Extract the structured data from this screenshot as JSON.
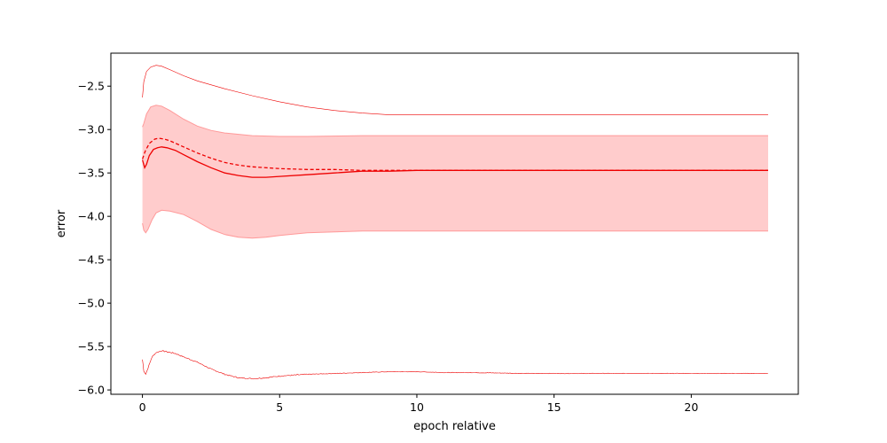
{
  "chart_data": {
    "type": "line",
    "title": "",
    "xlabel": "epoch relative",
    "ylabel": "error",
    "xlim": [
      -1.15,
      23.9
    ],
    "ylim": [
      -6.05,
      -2.12
    ],
    "xticks": [
      0,
      5,
      10,
      15,
      20
    ],
    "xtick_labels": [
      "0",
      "5",
      "10",
      "15",
      "20"
    ],
    "yticks": [
      -6.0,
      -5.5,
      -5.0,
      -4.5,
      -4.0,
      -3.5,
      -3.0,
      -2.5
    ],
    "ytick_labels": [
      "−6.0",
      "−5.5",
      "−5.0",
      "−4.5",
      "−4.0",
      "−3.5",
      "−3.0",
      "−2.5"
    ],
    "grid": false,
    "legend": "none",
    "colors": {
      "line": "#ee0000",
      "band": "#ffcccc",
      "band_edge": "#ff9999"
    },
    "series": [
      {
        "role": "upper-envelope",
        "style": "thin",
        "x": [
          0,
          0.05,
          0.15,
          0.3,
          0.5,
          0.7,
          1.0,
          1.5,
          2,
          3,
          4,
          5,
          6,
          7,
          8,
          9,
          10,
          12,
          15,
          20,
          22.8
        ],
        "y": [
          -2.63,
          -2.45,
          -2.33,
          -2.28,
          -2.26,
          -2.27,
          -2.31,
          -2.38,
          -2.44,
          -2.53,
          -2.61,
          -2.68,
          -2.74,
          -2.78,
          -2.81,
          -2.83,
          -2.83,
          -2.83,
          -2.83,
          -2.83,
          -2.83
        ]
      },
      {
        "role": "dashed-line",
        "style": "dashed",
        "x": [
          0,
          0.1,
          0.25,
          0.45,
          0.6,
          0.8,
          1.0,
          1.5,
          2,
          2.5,
          3,
          3.5,
          4,
          5,
          6,
          7,
          8,
          10,
          15,
          22.8
        ],
        "y": [
          -3.34,
          -3.25,
          -3.16,
          -3.11,
          -3.1,
          -3.11,
          -3.13,
          -3.2,
          -3.27,
          -3.33,
          -3.38,
          -3.41,
          -3.43,
          -3.45,
          -3.46,
          -3.46,
          -3.47,
          -3.47,
          -3.47,
          -3.47
        ]
      },
      {
        "role": "solid-line",
        "style": "solid",
        "x": [
          0,
          0.08,
          0.15,
          0.25,
          0.4,
          0.55,
          0.7,
          0.9,
          1.2,
          1.5,
          2,
          2.5,
          3,
          3.5,
          4,
          4.5,
          5,
          6,
          7,
          8,
          9,
          10,
          12,
          15,
          22.8
        ],
        "y": [
          -3.35,
          -3.44,
          -3.4,
          -3.3,
          -3.23,
          -3.21,
          -3.2,
          -3.21,
          -3.24,
          -3.29,
          -3.37,
          -3.44,
          -3.5,
          -3.53,
          -3.55,
          -3.55,
          -3.54,
          -3.52,
          -3.5,
          -3.48,
          -3.48,
          -3.47,
          -3.47,
          -3.47,
          -3.47
        ]
      },
      {
        "role": "lower-envelope",
        "style": "thin-noisy",
        "x": [
          0,
          0.05,
          0.12,
          0.2,
          0.35,
          0.5,
          0.7,
          0.9,
          1.2,
          1.5,
          2,
          2.5,
          3,
          3.5,
          4,
          4.5,
          5,
          6,
          7,
          8,
          9,
          10,
          11,
          12,
          14,
          16,
          18,
          20,
          22.8
        ],
        "y": [
          -5.65,
          -5.78,
          -5.82,
          -5.75,
          -5.62,
          -5.57,
          -5.55,
          -5.56,
          -5.58,
          -5.62,
          -5.68,
          -5.76,
          -5.82,
          -5.86,
          -5.87,
          -5.86,
          -5.84,
          -5.82,
          -5.81,
          -5.8,
          -5.79,
          -5.79,
          -5.8,
          -5.8,
          -5.81,
          -5.81,
          -5.81,
          -5.81,
          -5.81
        ]
      },
      {
        "role": "band-upper",
        "style": "fill",
        "x": [
          0,
          0.05,
          0.15,
          0.3,
          0.5,
          0.7,
          1.0,
          1.5,
          2,
          2.5,
          3,
          4,
          5,
          6,
          8,
          10,
          15,
          22.8
        ],
        "y": [
          -2.97,
          -2.93,
          -2.82,
          -2.74,
          -2.72,
          -2.73,
          -2.78,
          -2.88,
          -2.96,
          -3.01,
          -3.04,
          -3.07,
          -3.08,
          -3.08,
          -3.07,
          -3.07,
          -3.07,
          -3.07
        ]
      },
      {
        "role": "band-lower",
        "style": "fill",
        "x": [
          0,
          0.05,
          0.12,
          0.2,
          0.35,
          0.5,
          0.7,
          1.0,
          1.5,
          2,
          2.5,
          3,
          3.5,
          4,
          4.5,
          5,
          6,
          7,
          8,
          10,
          15,
          22.8
        ],
        "y": [
          -4.08,
          -4.16,
          -4.19,
          -4.15,
          -4.04,
          -3.96,
          -3.93,
          -3.94,
          -3.98,
          -4.06,
          -4.15,
          -4.21,
          -4.24,
          -4.25,
          -4.24,
          -4.22,
          -4.19,
          -4.18,
          -4.17,
          -4.17,
          -4.17,
          -4.17
        ]
      }
    ]
  }
}
